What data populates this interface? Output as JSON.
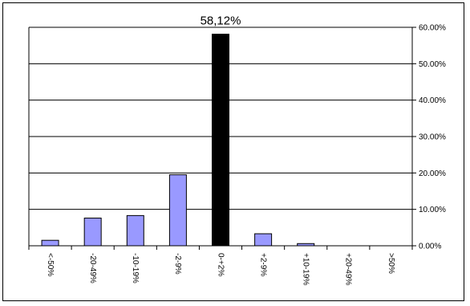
{
  "chart_data": {
    "type": "bar",
    "categories": [
      "<-50%",
      "-20-49%",
      "-10-19%",
      "-2-9%",
      "0-+2%",
      "+2-9%",
      "+10-19%",
      "+20-49%",
      ">50%"
    ],
    "values": [
      1.5,
      7.6,
      8.3,
      19.5,
      58.12,
      3.3,
      0.6,
      0,
      0
    ],
    "highlight_index": 4,
    "data_labels": [
      {
        "index": 4,
        "text": "58,12%"
      }
    ],
    "ylim": [
      0,
      60
    ],
    "yticks": [
      0,
      10,
      20,
      30,
      40,
      50,
      60
    ],
    "ytick_labels": [
      "0.00%",
      "10.00%",
      "20.00%",
      "30.00%",
      "40.00%",
      "50.00%",
      "60.00%"
    ],
    "y_axis_side": "right",
    "grid": true,
    "colors": {
      "bar": "#9999ff",
      "highlight": "#000000",
      "grid": "#000000"
    }
  }
}
